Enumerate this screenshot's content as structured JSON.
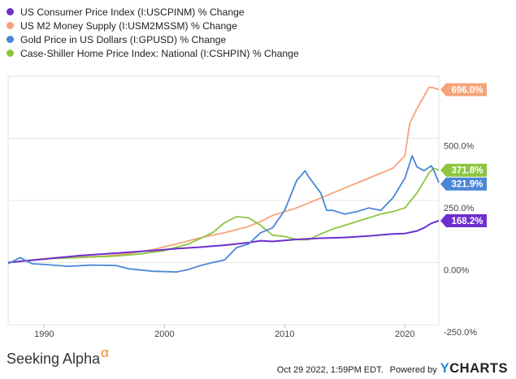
{
  "legend": [
    {
      "label": "US Consumer Price Index (I:USCPINM) % Change",
      "color": "#6d2fcf"
    },
    {
      "label": "US M2 Money Supply (I:USM2MSSM) % Change",
      "color": "#f5a478"
    },
    {
      "label": "Gold Price in US Dollars (I:GPUSD) % Change",
      "color": "#4a86d6"
    },
    {
      "label": "Case-Shiller Home Price Index: National (I:CSHPIN) % Change",
      "color": "#8cc63f"
    }
  ],
  "chart_data": {
    "type": "line",
    "xlabel": "",
    "ylabel": "",
    "xlim": [
      1987.0,
      2022.82
    ],
    "ylim": [
      -250,
      750
    ],
    "x_ticks": [
      "1990",
      "2000",
      "2010",
      "2020"
    ],
    "x_tick_values": [
      1990,
      2000,
      2010,
      2020
    ],
    "y_ticks": [
      "500.0%",
      "250.0%",
      "0.00%",
      "-250.0%"
    ],
    "y_tick_values": [
      500,
      250,
      0,
      -250
    ],
    "grid": "horizontal",
    "series": [
      {
        "name": "US Consumer Price Index (I:USCPINM) % Change",
        "color": "#6d2fcf",
        "end_label": "168.2%",
        "end_value": 168.2,
        "points": [
          [
            1987,
            0
          ],
          [
            1990,
            14
          ],
          [
            1993,
            28
          ],
          [
            1996,
            38
          ],
          [
            1999,
            48
          ],
          [
            2001,
            56
          ],
          [
            2003,
            62
          ],
          [
            2005,
            70
          ],
          [
            2007,
            80
          ],
          [
            2008,
            88
          ],
          [
            2009,
            85
          ],
          [
            2011,
            93
          ],
          [
            2013,
            98
          ],
          [
            2015,
            101
          ],
          [
            2017,
            107
          ],
          [
            2019,
            115
          ],
          [
            2020,
            117
          ],
          [
            2021,
            127
          ],
          [
            2021.6,
            140
          ],
          [
            2022.2,
            158
          ],
          [
            2022.82,
            168.2
          ]
        ]
      },
      {
        "name": "US M2 Money Supply (I:USM2MSSM) % Change",
        "color": "#f5a478",
        "end_label": "696.0%",
        "end_value": 696.0,
        "points": [
          [
            1987,
            0
          ],
          [
            1989,
            10
          ],
          [
            1991,
            20
          ],
          [
            1993,
            23
          ],
          [
            1995,
            26
          ],
          [
            1997,
            36
          ],
          [
            1999,
            52
          ],
          [
            2001,
            75
          ],
          [
            2003,
            100
          ],
          [
            2005,
            120
          ],
          [
            2007,
            145
          ],
          [
            2008,
            165
          ],
          [
            2009,
            190
          ],
          [
            2011,
            220
          ],
          [
            2013,
            260
          ],
          [
            2015,
            300
          ],
          [
            2017,
            340
          ],
          [
            2019,
            380
          ],
          [
            2020,
            430
          ],
          [
            2020.4,
            560
          ],
          [
            2021,
            620
          ],
          [
            2021.6,
            670
          ],
          [
            2022,
            705
          ],
          [
            2022.3,
            705
          ],
          [
            2022.82,
            696
          ]
        ]
      },
      {
        "name": "Gold Price in US Dollars (I:GPUSD) % Change",
        "color": "#4a86d6",
        "end_label": "321.9%",
        "end_value": 321.9,
        "points": [
          [
            1987,
            -5
          ],
          [
            1988,
            20
          ],
          [
            1989,
            -5
          ],
          [
            1990,
            -8
          ],
          [
            1992,
            -15
          ],
          [
            1994,
            -10
          ],
          [
            1996,
            -12
          ],
          [
            1997,
            -25
          ],
          [
            1999,
            -35
          ],
          [
            2001,
            -38
          ],
          [
            2002,
            -28
          ],
          [
            2003,
            -12
          ],
          [
            2004,
            0
          ],
          [
            2005,
            10
          ],
          [
            2006,
            60
          ],
          [
            2007,
            75
          ],
          [
            2008,
            120
          ],
          [
            2009,
            140
          ],
          [
            2010,
            210
          ],
          [
            2011,
            330
          ],
          [
            2011.7,
            370
          ],
          [
            2012,
            345
          ],
          [
            2013,
            280
          ],
          [
            2013.5,
            210
          ],
          [
            2014,
            210
          ],
          [
            2015,
            195
          ],
          [
            2016,
            205
          ],
          [
            2017,
            220
          ],
          [
            2018,
            210
          ],
          [
            2019,
            260
          ],
          [
            2020,
            340
          ],
          [
            2020.6,
            430
          ],
          [
            2021,
            385
          ],
          [
            2021.6,
            370
          ],
          [
            2022.2,
            390
          ],
          [
            2022.5,
            360
          ],
          [
            2022.82,
            321.9
          ]
        ]
      },
      {
        "name": "Case-Shiller Home Price Index: National (I:CSHPIN) % Change",
        "color": "#8cc63f",
        "end_label": "371.8%",
        "end_value": 371.8,
        "points": [
          [
            1987,
            0
          ],
          [
            1990,
            15
          ],
          [
            1993,
            20
          ],
          [
            1996,
            26
          ],
          [
            1998,
            35
          ],
          [
            2000,
            48
          ],
          [
            2002,
            75
          ],
          [
            2004,
            120
          ],
          [
            2005,
            160
          ],
          [
            2006,
            185
          ],
          [
            2007,
            180
          ],
          [
            2008,
            150
          ],
          [
            2009,
            110
          ],
          [
            2010,
            105
          ],
          [
            2011,
            92
          ],
          [
            2012,
            92
          ],
          [
            2013,
            115
          ],
          [
            2014,
            135
          ],
          [
            2015,
            150
          ],
          [
            2016,
            165
          ],
          [
            2017,
            180
          ],
          [
            2018,
            195
          ],
          [
            2019,
            205
          ],
          [
            2020,
            220
          ],
          [
            2021,
            280
          ],
          [
            2022,
            360
          ],
          [
            2022.4,
            380
          ],
          [
            2022.82,
            371.8
          ]
        ]
      }
    ]
  },
  "footer": {
    "brand": "Seeking Alpha",
    "alpha_symbol": "α",
    "timestamp": "Oct 29 2022, 1:59PM EDT.",
    "powered_by": "Powered by",
    "ycharts_y": "Y",
    "ycharts_rest": "CHARTS"
  }
}
